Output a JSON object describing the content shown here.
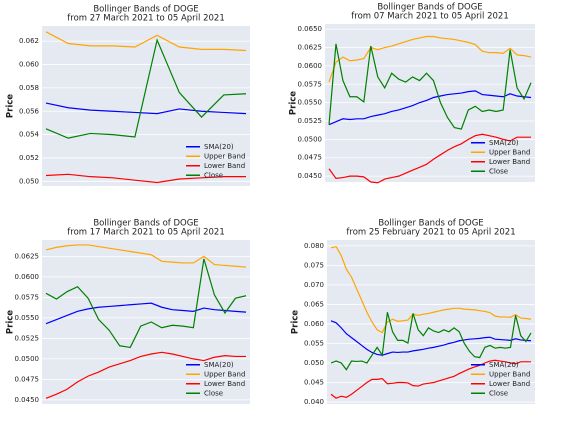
{
  "chart_data": [
    {
      "type": "line",
      "title": "Bollinger Bands of DOGE",
      "subtitle": "from 27 March 2021 to 05 April 2021",
      "ylabel": "Price",
      "ylim": [
        0.0496,
        0.0633
      ],
      "yticks": [
        {
          "value": 0.05,
          "label": "0.050"
        },
        0.052,
        0.054,
        0.056,
        0.058,
        {
          "value": 0.06,
          "label": "0.060"
        },
        0.062
      ],
      "grid": true,
      "legend": "lower right",
      "series": [
        {
          "name": "SMA(20)",
          "color": "#0000ff",
          "values": [
            0.0567,
            0.0563,
            0.0561,
            0.056,
            0.0559,
            0.0558,
            0.0562,
            0.056,
            0.0559,
            0.0558
          ]
        },
        {
          "name": "Upper Band",
          "color": "#ffa500",
          "values": [
            0.0628,
            0.0618,
            0.0616,
            0.0616,
            0.0615,
            0.0625,
            0.0615,
            0.0613,
            0.0613,
            0.0612
          ]
        },
        {
          "name": "Lower Band",
          "color": "#ff0000",
          "values": [
            0.0505,
            0.0506,
            0.0504,
            0.0503,
            0.0501,
            0.0499,
            0.0502,
            0.0503,
            0.0504,
            0.0504
          ]
        },
        {
          "name": "Close",
          "color": "#008000",
          "values": [
            0.0545,
            0.0537,
            0.0541,
            0.054,
            0.0538,
            0.0621,
            0.0576,
            0.0555,
            0.0574,
            0.0575
          ]
        }
      ]
    },
    {
      "type": "line",
      "title": "Bollinger Bands of DOGE",
      "subtitle": "from 07 March 2021 to 05 April 2021",
      "ylabel": "Price",
      "ylim": [
        0.0442,
        0.0657
      ],
      "yticks": [
        {
          "value": 0.045,
          "label": "0.0450"
        },
        0.0475,
        {
          "value": 0.05,
          "label": "0.0500"
        },
        0.0525,
        {
          "value": 0.055,
          "label": "0.0550"
        },
        0.0575,
        {
          "value": 0.06,
          "label": "0.0600"
        },
        0.0625,
        {
          "value": 0.065,
          "label": "0.0650"
        }
      ],
      "grid": true,
      "legend": "lower right",
      "series": [
        {
          "name": "SMA(20)",
          "color": "#0000ff",
          "values": [
            0.052,
            0.0524,
            0.0528,
            0.0527,
            0.0528,
            0.0528,
            0.0531,
            0.0533,
            0.0535,
            0.0538,
            0.054,
            0.0543,
            0.0546,
            0.055,
            0.0553,
            0.0557,
            0.0559,
            0.0561,
            0.0562,
            0.0563,
            0.0565,
            0.0566,
            0.0561,
            0.056,
            0.0559,
            0.0558,
            0.0562,
            0.0559,
            0.0558,
            0.0557
          ]
        },
        {
          "name": "Upper Band",
          "color": "#ffa500",
          "values": [
            0.0578,
            0.0605,
            0.0612,
            0.0607,
            0.0608,
            0.061,
            0.0625,
            0.0622,
            0.0625,
            0.0627,
            0.063,
            0.0633,
            0.0636,
            0.0638,
            0.064,
            0.064,
            0.0638,
            0.0637,
            0.0636,
            0.0634,
            0.0632,
            0.0629,
            0.062,
            0.0618,
            0.0618,
            0.0617,
            0.0624,
            0.0615,
            0.0614,
            0.0612
          ]
        },
        {
          "name": "Lower Band",
          "color": "#ff0000",
          "values": [
            0.046,
            0.0447,
            0.0448,
            0.045,
            0.045,
            0.0449,
            0.0442,
            0.0441,
            0.0446,
            0.0448,
            0.045,
            0.0454,
            0.0458,
            0.0462,
            0.0466,
            0.0473,
            0.0479,
            0.0485,
            0.049,
            0.0494,
            0.05,
            0.0505,
            0.0507,
            0.0505,
            0.0503,
            0.05,
            0.0498,
            0.0503,
            0.0503,
            0.0503
          ]
        },
        {
          "name": "Close",
          "color": "#008000",
          "values": [
            0.052,
            0.063,
            0.058,
            0.0558,
            0.0558,
            0.0551,
            0.0627,
            0.0585,
            0.057,
            0.059,
            0.0582,
            0.0578,
            0.0585,
            0.058,
            0.059,
            0.058,
            0.055,
            0.053,
            0.0516,
            0.0514,
            0.054,
            0.0545,
            0.0538,
            0.054,
            0.0538,
            0.054,
            0.0622,
            0.057,
            0.0555,
            0.0577
          ]
        }
      ]
    },
    {
      "type": "line",
      "title": "Bollinger Bands of DOGE",
      "subtitle": "from 17 March 2021 to 05 April 2021",
      "ylabel": "Price",
      "ylim": [
        0.0445,
        0.0645
      ],
      "yticks": [
        {
          "value": 0.045,
          "label": "0.0450"
        },
        0.0475,
        {
          "value": 0.05,
          "label": "0.0500"
        },
        0.0525,
        {
          "value": 0.055,
          "label": "0.0550"
        },
        0.0575,
        {
          "value": 0.06,
          "label": "0.0600"
        },
        0.0625
      ],
      "grid": true,
      "legend": "lower right",
      "series": [
        {
          "name": "SMA(20)",
          "color": "#0000ff",
          "values": [
            0.0543,
            0.0548,
            0.0553,
            0.0558,
            0.0561,
            0.0563,
            0.0564,
            0.0565,
            0.0566,
            0.0567,
            0.0568,
            0.0563,
            0.056,
            0.0559,
            0.0558,
            0.0562,
            0.056,
            0.0559,
            0.0558,
            0.0557
          ]
        },
        {
          "name": "Upper Band",
          "color": "#ffa500",
          "values": [
            0.0633,
            0.0636,
            0.0638,
            0.0639,
            0.0639,
            0.0637,
            0.0635,
            0.0633,
            0.0631,
            0.0629,
            0.0627,
            0.0619,
            0.0618,
            0.0617,
            0.0617,
            0.0625,
            0.0615,
            0.0614,
            0.0613,
            0.0612
          ]
        },
        {
          "name": "Lower Band",
          "color": "#ff0000",
          "values": [
            0.0452,
            0.0457,
            0.0463,
            0.0472,
            0.0479,
            0.0484,
            0.049,
            0.0494,
            0.0498,
            0.0503,
            0.0506,
            0.0508,
            0.0506,
            0.0503,
            0.05,
            0.0498,
            0.0502,
            0.0504,
            0.0503,
            0.0503
          ]
        },
        {
          "name": "Close",
          "color": "#008000",
          "values": [
            0.058,
            0.0573,
            0.0582,
            0.0588,
            0.0574,
            0.0548,
            0.0535,
            0.0516,
            0.0514,
            0.054,
            0.0545,
            0.0538,
            0.0541,
            0.054,
            0.0538,
            0.0622,
            0.0578,
            0.0556,
            0.0574,
            0.0577
          ]
        }
      ]
    },
    {
      "type": "line",
      "title": "Bollinger Bands of DOGE",
      "subtitle": "from 25 February 2021 to 05 April 2021",
      "ylabel": "Price",
      "ylim": [
        0.0395,
        0.0815
      ],
      "yticks": [
        {
          "value": 0.04,
          "label": "0.040"
        },
        0.045,
        {
          "value": 0.05,
          "label": "0.050"
        },
        0.055,
        {
          "value": 0.06,
          "label": "0.060"
        },
        0.065,
        {
          "value": 0.07,
          "label": "0.070"
        },
        0.075,
        {
          "value": 0.08,
          "label": "0.080"
        }
      ],
      "grid": true,
      "legend": "lower right",
      "series": [
        {
          "name": "SMA(20)",
          "color": "#0000ff",
          "values": [
            0.0608,
            0.0603,
            0.059,
            0.0575,
            0.0565,
            0.0555,
            0.0545,
            0.0535,
            0.0527,
            0.0522,
            0.052,
            0.0524,
            0.0528,
            0.0527,
            0.0528,
            0.0528,
            0.0531,
            0.0533,
            0.0535,
            0.0538,
            0.054,
            0.0543,
            0.0546,
            0.055,
            0.0553,
            0.0557,
            0.0559,
            0.0561,
            0.0562,
            0.0563,
            0.0565,
            0.0566,
            0.0561,
            0.056,
            0.0559,
            0.0558,
            0.0562,
            0.0559,
            0.0558,
            0.0557
          ]
        },
        {
          "name": "Upper Band",
          "color": "#ffa500",
          "values": [
            0.0795,
            0.0798,
            0.0775,
            0.074,
            0.072,
            0.069,
            0.066,
            0.063,
            0.0605,
            0.0585,
            0.0578,
            0.0605,
            0.0612,
            0.0607,
            0.0608,
            0.061,
            0.0625,
            0.0622,
            0.0625,
            0.0627,
            0.063,
            0.0633,
            0.0636,
            0.0638,
            0.064,
            0.064,
            0.0638,
            0.0637,
            0.0636,
            0.0634,
            0.0632,
            0.0629,
            0.062,
            0.0618,
            0.0618,
            0.0617,
            0.0624,
            0.0615,
            0.0614,
            0.0612
          ]
        },
        {
          "name": "Lower Band",
          "color": "#ff0000",
          "values": [
            0.042,
            0.041,
            0.0415,
            0.0412,
            0.042,
            0.043,
            0.044,
            0.045,
            0.0458,
            0.0458,
            0.046,
            0.0447,
            0.0448,
            0.045,
            0.045,
            0.0449,
            0.0442,
            0.0441,
            0.0446,
            0.0448,
            0.045,
            0.0454,
            0.0458,
            0.0462,
            0.0466,
            0.0473,
            0.0479,
            0.0485,
            0.049,
            0.0494,
            0.05,
            0.0505,
            0.0507,
            0.0505,
            0.0503,
            0.05,
            0.0498,
            0.0503,
            0.0503,
            0.0503
          ]
        },
        {
          "name": "Close",
          "color": "#008000",
          "values": [
            0.05,
            0.0505,
            0.05,
            0.0483,
            0.0505,
            0.0504,
            0.0505,
            0.05,
            0.052,
            0.054,
            0.052,
            0.063,
            0.058,
            0.0558,
            0.0558,
            0.0551,
            0.0627,
            0.0585,
            0.057,
            0.059,
            0.0582,
            0.0578,
            0.0585,
            0.058,
            0.059,
            0.058,
            0.055,
            0.053,
            0.0516,
            0.0514,
            0.054,
            0.0545,
            0.0538,
            0.054,
            0.0538,
            0.054,
            0.0622,
            0.057,
            0.0555,
            0.0577
          ]
        }
      ]
    }
  ]
}
